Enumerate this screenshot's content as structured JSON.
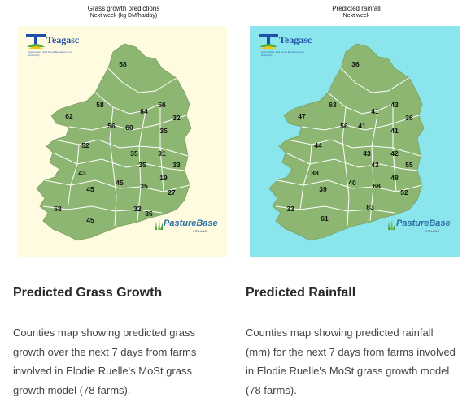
{
  "cards": [
    {
      "map_title": "Grass growth predictions",
      "map_subtitle": "Next week (kg DM/ha/day)",
      "background": "#fffbe0",
      "heading": "Predicted Grass Growth",
      "description": "Counties map showing predicted grass growth over the next 7 days from farms involved in Elodie Ruelle's MoSt grass growth model (78 farms).",
      "county_values": [
        "58",
        "58",
        "56",
        "64",
        "62",
        "56",
        "60",
        "35",
        "32",
        "52",
        "35",
        "31",
        "35",
        "33",
        "43",
        "45",
        "35",
        "19",
        "45",
        "35",
        "27",
        "58",
        "32",
        "45"
      ]
    },
    {
      "map_title": "Predicted rainfall",
      "map_subtitle": "Next week",
      "background": "#8ae6ec",
      "heading": "Predicted Rainfall",
      "description": "Counties map showing predicted rainfall (mm) for the next 7 days from farms involved in Elodie Ruelle's MoSt grass growth model (78 farms).",
      "county_values": [
        "36",
        "63",
        "41",
        "43",
        "47",
        "56",
        "41",
        "36",
        "44",
        "41",
        "43",
        "42",
        "43",
        "55",
        "38",
        "40",
        "48",
        "39",
        "68",
        "52",
        "33",
        "83",
        "61"
      ]
    }
  ],
  "logos": {
    "teagasc_word": "Teagasc",
    "teagasc_sub": "Agriculture and Food Development Authority",
    "pasturebase_word": "PastureBase",
    "pasturebase_sub": "IRELAND"
  },
  "colors": {
    "land": "#8db672",
    "border": "#ffffff",
    "logo_blue": "#1f4fa8"
  }
}
